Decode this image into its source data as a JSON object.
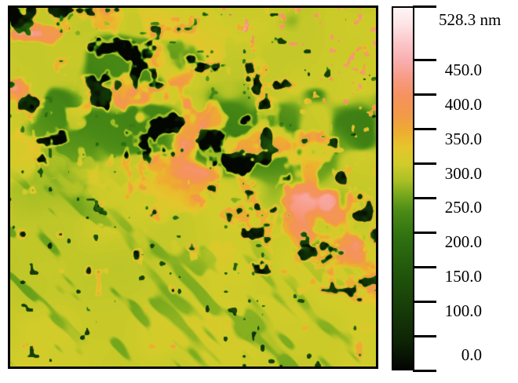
{
  "figure": {
    "kind": "afm-height-map-with-colorbar",
    "background_color": "#ffffff",
    "frame_color": "#000000"
  },
  "chart_data": {
    "type": "heatmap",
    "title": "",
    "description": "AFM-style surface topography height map (heights 0 to 528.3 nm). A rough mottled band of raised orange/salmon ridges peppered with deep dark-green pits runs diagonally from the top-left corner toward the middle of the right edge; the upper-right corner shows smooth yellow terrain with diffuse green patches and tiny pink speckles; the lower-left half is flat yellow (~300 nm) with sparse chains of small dark pits (often with orange halos) and faint green streaks.",
    "legend_position": "right",
    "grid": false,
    "colorbar": {
      "unit": "nm",
      "min": 0.0,
      "max": 528.3,
      "max_label": "528.3 nm",
      "tick_values": [
        528.3,
        450,
        400,
        350,
        300,
        250,
        200,
        150,
        100,
        50,
        0
      ],
      "labeled_ticks": [
        {
          "value": 450,
          "label": "450.0"
        },
        {
          "value": 400,
          "label": "400.0"
        },
        {
          "value": 350,
          "label": "350.0"
        },
        {
          "value": 300,
          "label": "300.0"
        },
        {
          "value": 250,
          "label": "250.0"
        },
        {
          "value": 200,
          "label": "200.0"
        },
        {
          "value": 150,
          "label": "150.0"
        },
        {
          "value": 100,
          "label": "100.0"
        },
        {
          "value": 0,
          "label": "0.0"
        }
      ],
      "colormap_stops": [
        {
          "t": 0.0,
          "color": "#040402"
        },
        {
          "t": 0.075,
          "color": "#0d2405"
        },
        {
          "t": 0.17,
          "color": "#173d08"
        },
        {
          "t": 0.265,
          "color": "#21560b"
        },
        {
          "t": 0.36,
          "color": "#2e6f10"
        },
        {
          "t": 0.435,
          "color": "#4a8a16"
        },
        {
          "t": 0.483,
          "color": "#77a81d"
        },
        {
          "t": 0.52,
          "color": "#a9bf25"
        },
        {
          "t": 0.568,
          "color": "#d1cc2a"
        },
        {
          "t": 0.615,
          "color": "#e5c52c"
        },
        {
          "t": 0.655,
          "color": "#eead30"
        },
        {
          "t": 0.7,
          "color": "#f29a47"
        },
        {
          "t": 0.757,
          "color": "#f5925f"
        },
        {
          "t": 0.805,
          "color": "#f79b83"
        },
        {
          "t": 0.852,
          "color": "#f8adae"
        },
        {
          "t": 0.91,
          "color": "#fbcacc"
        },
        {
          "t": 0.955,
          "color": "#fde4e5"
        },
        {
          "t": 1.0,
          "color": "#fef5f5"
        }
      ]
    },
    "texture": {
      "seed": 7,
      "base_height_nm": 296,
      "band_center_left_v": 0.1,
      "band_center_right_v": 0.58,
      "band_half_width_v": 0.36,
      "ridge_height_nm": 100,
      "pink_peak_extra_nm": 48,
      "pit_depth_nm": 215,
      "halo_height_nm": 50,
      "green_patch_drop_nm": 85,
      "streak_drop_nm": 42
    }
  }
}
